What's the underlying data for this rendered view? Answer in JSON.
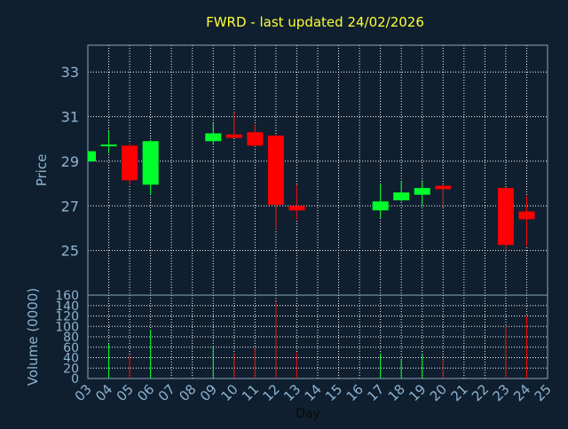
{
  "colors": {
    "background": "#0f1f2f",
    "text": "#8fb3d1",
    "title": "#ffff33",
    "grid": "#ffffff",
    "frame": "#8aa4bd",
    "up": "#00ff2a",
    "down": "#ff0000"
  },
  "chart_data": [
    {
      "type": "candlestick",
      "title": "FWRD - last updated 24/02/2026",
      "xlabel": "",
      "ylabel": "Price",
      "ylim": [
        23.0,
        34.2
      ],
      "yticks": [
        25,
        27,
        29,
        31,
        33
      ],
      "grid": true,
      "candles": [
        {
          "day": "03",
          "open": 29.0,
          "high": 29.45,
          "low": 28.95,
          "close": 29.45
        },
        {
          "day": "04",
          "open": 29.7,
          "high": 30.35,
          "low": 29.35,
          "close": 29.75
        },
        {
          "day": "05",
          "open": 29.7,
          "high": 29.8,
          "low": 27.95,
          "close": 28.15
        },
        {
          "day": "06",
          "open": 27.95,
          "high": 29.95,
          "low": 27.5,
          "close": 29.9
        },
        {
          "day": "09",
          "open": 29.9,
          "high": 30.7,
          "low": 29.8,
          "close": 30.25
        },
        {
          "day": "10",
          "open": 30.2,
          "high": 31.2,
          "low": 30.05,
          "close": 30.05
        },
        {
          "day": "11",
          "open": 30.3,
          "high": 30.65,
          "low": 29.65,
          "close": 29.7
        },
        {
          "day": "12",
          "open": 30.15,
          "high": 30.2,
          "low": 25.95,
          "close": 27.05
        },
        {
          "day": "13",
          "open": 27.0,
          "high": 27.95,
          "low": 26.4,
          "close": 26.8
        },
        {
          "day": "17",
          "open": 26.8,
          "high": 28.0,
          "low": 26.45,
          "close": 27.2
        },
        {
          "day": "18",
          "open": 27.25,
          "high": 28.1,
          "low": 27.2,
          "close": 27.6
        },
        {
          "day": "19",
          "open": 27.5,
          "high": 28.15,
          "low": 27.0,
          "close": 27.8
        },
        {
          "day": "20",
          "open": 27.9,
          "high": 27.95,
          "low": 26.95,
          "close": 27.75
        },
        {
          "day": "23",
          "open": 27.8,
          "high": 27.85,
          "low": 25.0,
          "close": 25.25
        },
        {
          "day": "24",
          "open": 26.75,
          "high": 27.45,
          "low": 25.2,
          "close": 26.4
        }
      ]
    },
    {
      "type": "bar",
      "title": "",
      "xlabel": "Day",
      "ylabel": "Volume (0000)",
      "ylim": [
        0,
        160
      ],
      "yticks": [
        0,
        20,
        40,
        60,
        80,
        100,
        120,
        140,
        160
      ],
      "categories": [
        "03",
        "04",
        "05",
        "06",
        "07",
        "08",
        "09",
        "10",
        "11",
        "12",
        "13",
        "14",
        "15",
        "16",
        "17",
        "18",
        "19",
        "20",
        "21",
        "22",
        "23",
        "24",
        "25"
      ],
      "grid": true,
      "bars": [
        {
          "day": "03",
          "value": 0,
          "direction": "up"
        },
        {
          "day": "04",
          "value": 67,
          "direction": "up"
        },
        {
          "day": "05",
          "value": 45,
          "direction": "down"
        },
        {
          "day": "06",
          "value": 93,
          "direction": "up"
        },
        {
          "day": "09",
          "value": 62,
          "direction": "up"
        },
        {
          "day": "10",
          "value": 47,
          "direction": "down"
        },
        {
          "day": "11",
          "value": 57,
          "direction": "down"
        },
        {
          "day": "12",
          "value": 148,
          "direction": "down"
        },
        {
          "day": "13",
          "value": 50,
          "direction": "down"
        },
        {
          "day": "17",
          "value": 48,
          "direction": "up"
        },
        {
          "day": "18",
          "value": 37,
          "direction": "up"
        },
        {
          "day": "19",
          "value": 47,
          "direction": "up"
        },
        {
          "day": "20",
          "value": 37,
          "direction": "down"
        },
        {
          "day": "23",
          "value": 100,
          "direction": "down"
        },
        {
          "day": "24",
          "value": 120,
          "direction": "down"
        }
      ]
    }
  ]
}
